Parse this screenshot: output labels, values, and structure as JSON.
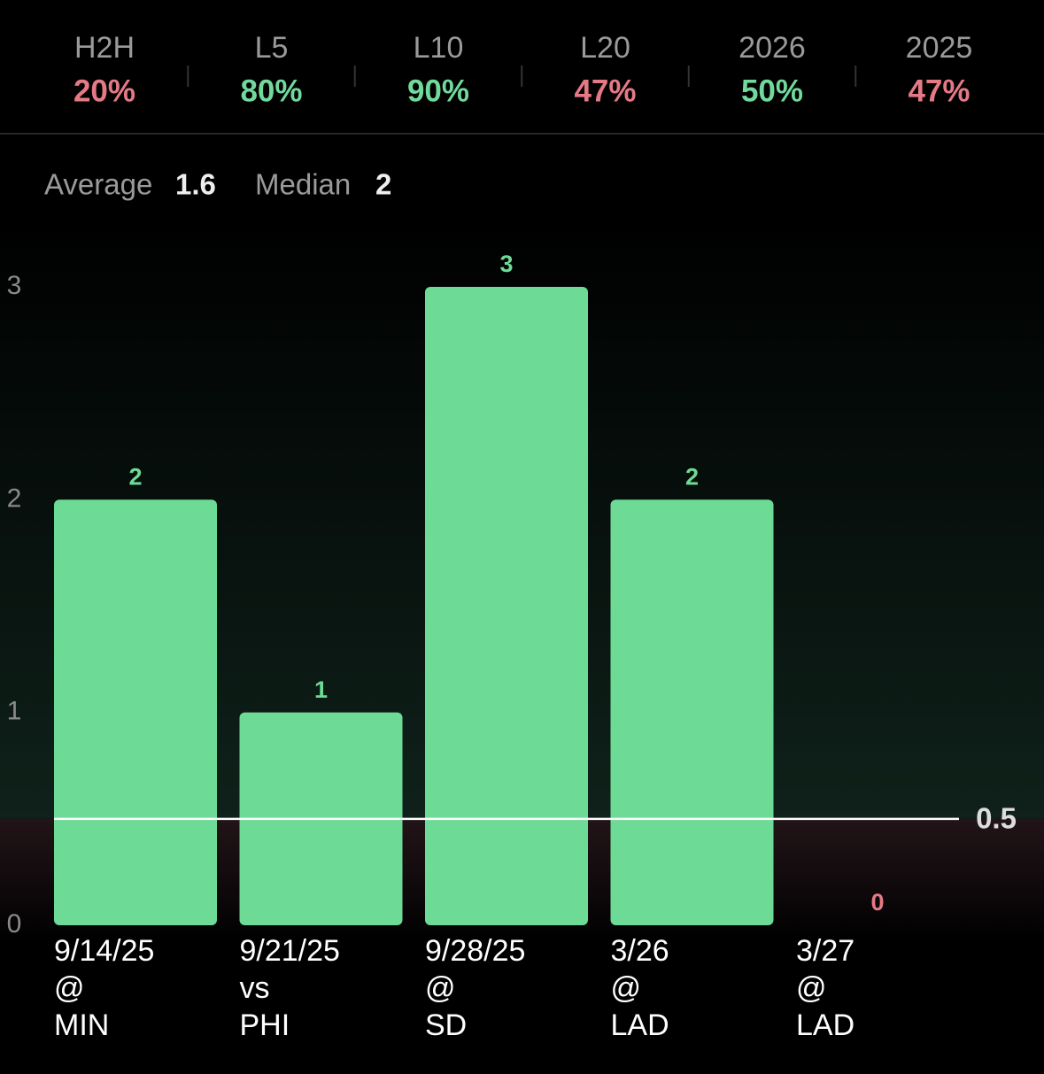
{
  "stats": [
    {
      "label": "H2H",
      "value": "20%",
      "color": "#e47a86"
    },
    {
      "label": "L5",
      "value": "80%",
      "color": "#72d99c"
    },
    {
      "label": "L10",
      "value": "90%",
      "color": "#72d99c"
    },
    {
      "label": "L20",
      "value": "47%",
      "color": "#e47a86"
    },
    {
      "label": "2026",
      "value": "50%",
      "color": "#72d99c"
    },
    {
      "label": "2025",
      "value": "47%",
      "color": "#e47a86"
    }
  ],
  "summary": [
    {
      "label": "Average",
      "value": 1.6
    },
    {
      "label": "Median",
      "value": 2
    }
  ],
  "chart_data": {
    "type": "bar",
    "categories": [
      "9/14/25",
      "9/21/25",
      "9/28/25",
      "3/26",
      "3/27"
    ],
    "venues": [
      "@",
      "vs",
      "@",
      "@",
      "@"
    ],
    "opponents": [
      "MIN",
      "PHI",
      "SD",
      "LAD",
      "LAD"
    ],
    "values": [
      2,
      1,
      3,
      2,
      0
    ],
    "color": "#6ddb96",
    "label_colors": [
      "#6ddb96",
      "#6ddb96",
      "#6ddb96",
      "#6ddb96",
      "#e47a86"
    ],
    "ylim": [
      0,
      3
    ],
    "yticks": [
      0,
      1,
      2,
      3
    ],
    "reference_line": 0.5
  }
}
